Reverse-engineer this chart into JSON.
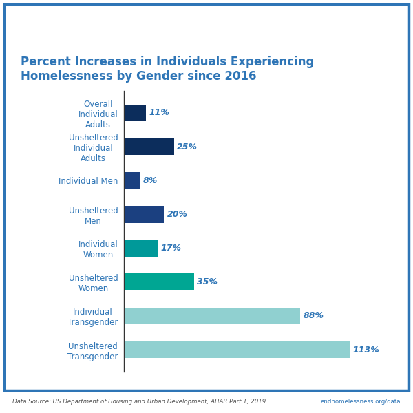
{
  "title_line1": "Percent Increases in Individuals Experiencing",
  "title_line2": "Homelessness by Gender since 2016",
  "categories": [
    "Overall\nIndividual\nAdults",
    "Unsheltered\nIndividual\nAdults",
    "Individual Men",
    "Unsheltered\nMen",
    "Individual\nWomen",
    "Unsheltered\nWomen",
    "Individual\nTransgender",
    "Unsheltered\nTransgender"
  ],
  "values": [
    11,
    25,
    8,
    20,
    17,
    35,
    88,
    113
  ],
  "bar_colors": [
    "#0c2d5c",
    "#0c2d5c",
    "#1b4080",
    "#1b4080",
    "#009999",
    "#00a693",
    "#90d0d0",
    "#90d0d0"
  ],
  "title_color": "#2e75b6",
  "label_color": "#2e75b6",
  "value_color": "#2e75b6",
  "footer_left": "Data Source: US Department of Housing and Urban Development, AHAR Part 1, 2019.",
  "footer_right": "endhomelessness.org/data",
  "background_color": "#ffffff",
  "border_color": "#2e75b6",
  "xlim": [
    0,
    130
  ],
  "bar_height": 0.5
}
